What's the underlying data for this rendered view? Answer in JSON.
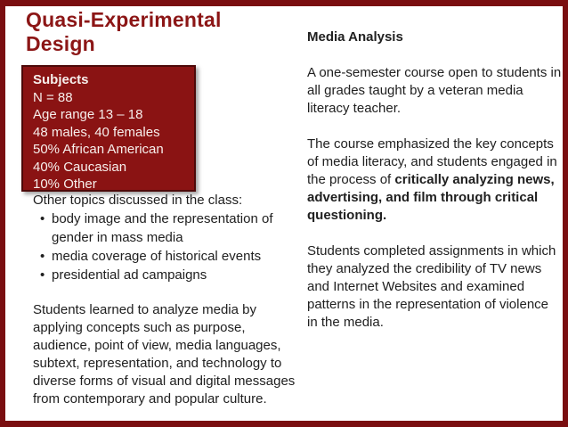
{
  "colors": {
    "background": "#ffffff",
    "frame_border": "#7a0e10",
    "title_text": "#8c1616",
    "subjects_box_fill": "#8a1313",
    "subjects_box_border": "#4d0909",
    "subjects_box_text": "#f7efec",
    "body_text": "#202020"
  },
  "glyphs": {
    "bullet": "•"
  },
  "title": {
    "text": "Quasi-Experimental\nDesign"
  },
  "subjects_box": {
    "heading": "Subjects",
    "lines": [
      "N = 88",
      "Age range 13 – 18",
      "48 males, 40 females",
      "50% African American",
      "40% Caucasian",
      "10% Other"
    ]
  },
  "left_column": {
    "topics_heading": "Other topics discussed in the class:",
    "topics": [
      "body image and the representation of gender in mass media",
      "media coverage of historical events",
      "presidential ad campaigns"
    ],
    "paragraph": "Students learned to analyze media by applying concepts such as purpose, audience, point of view, media languages, subtext, representation, and technology to diverse forms of visual and digital messages from contemporary and popular culture."
  },
  "right_column": {
    "heading": "Media Analysis",
    "paragraph1": "A one-semester course open to students in all grades taught by a veteran media literacy teacher.",
    "paragraph2_normal": "The course emphasized the key concepts of media literacy, and students engaged in the process of ",
    "paragraph2_bold": "critically analyzing news, advertising, and film through critical questioning.",
    "paragraph3": "Students completed assignments in which they analyzed the credibility of TV news and Internet Websites and examined patterns in the representation of violence in the media."
  }
}
